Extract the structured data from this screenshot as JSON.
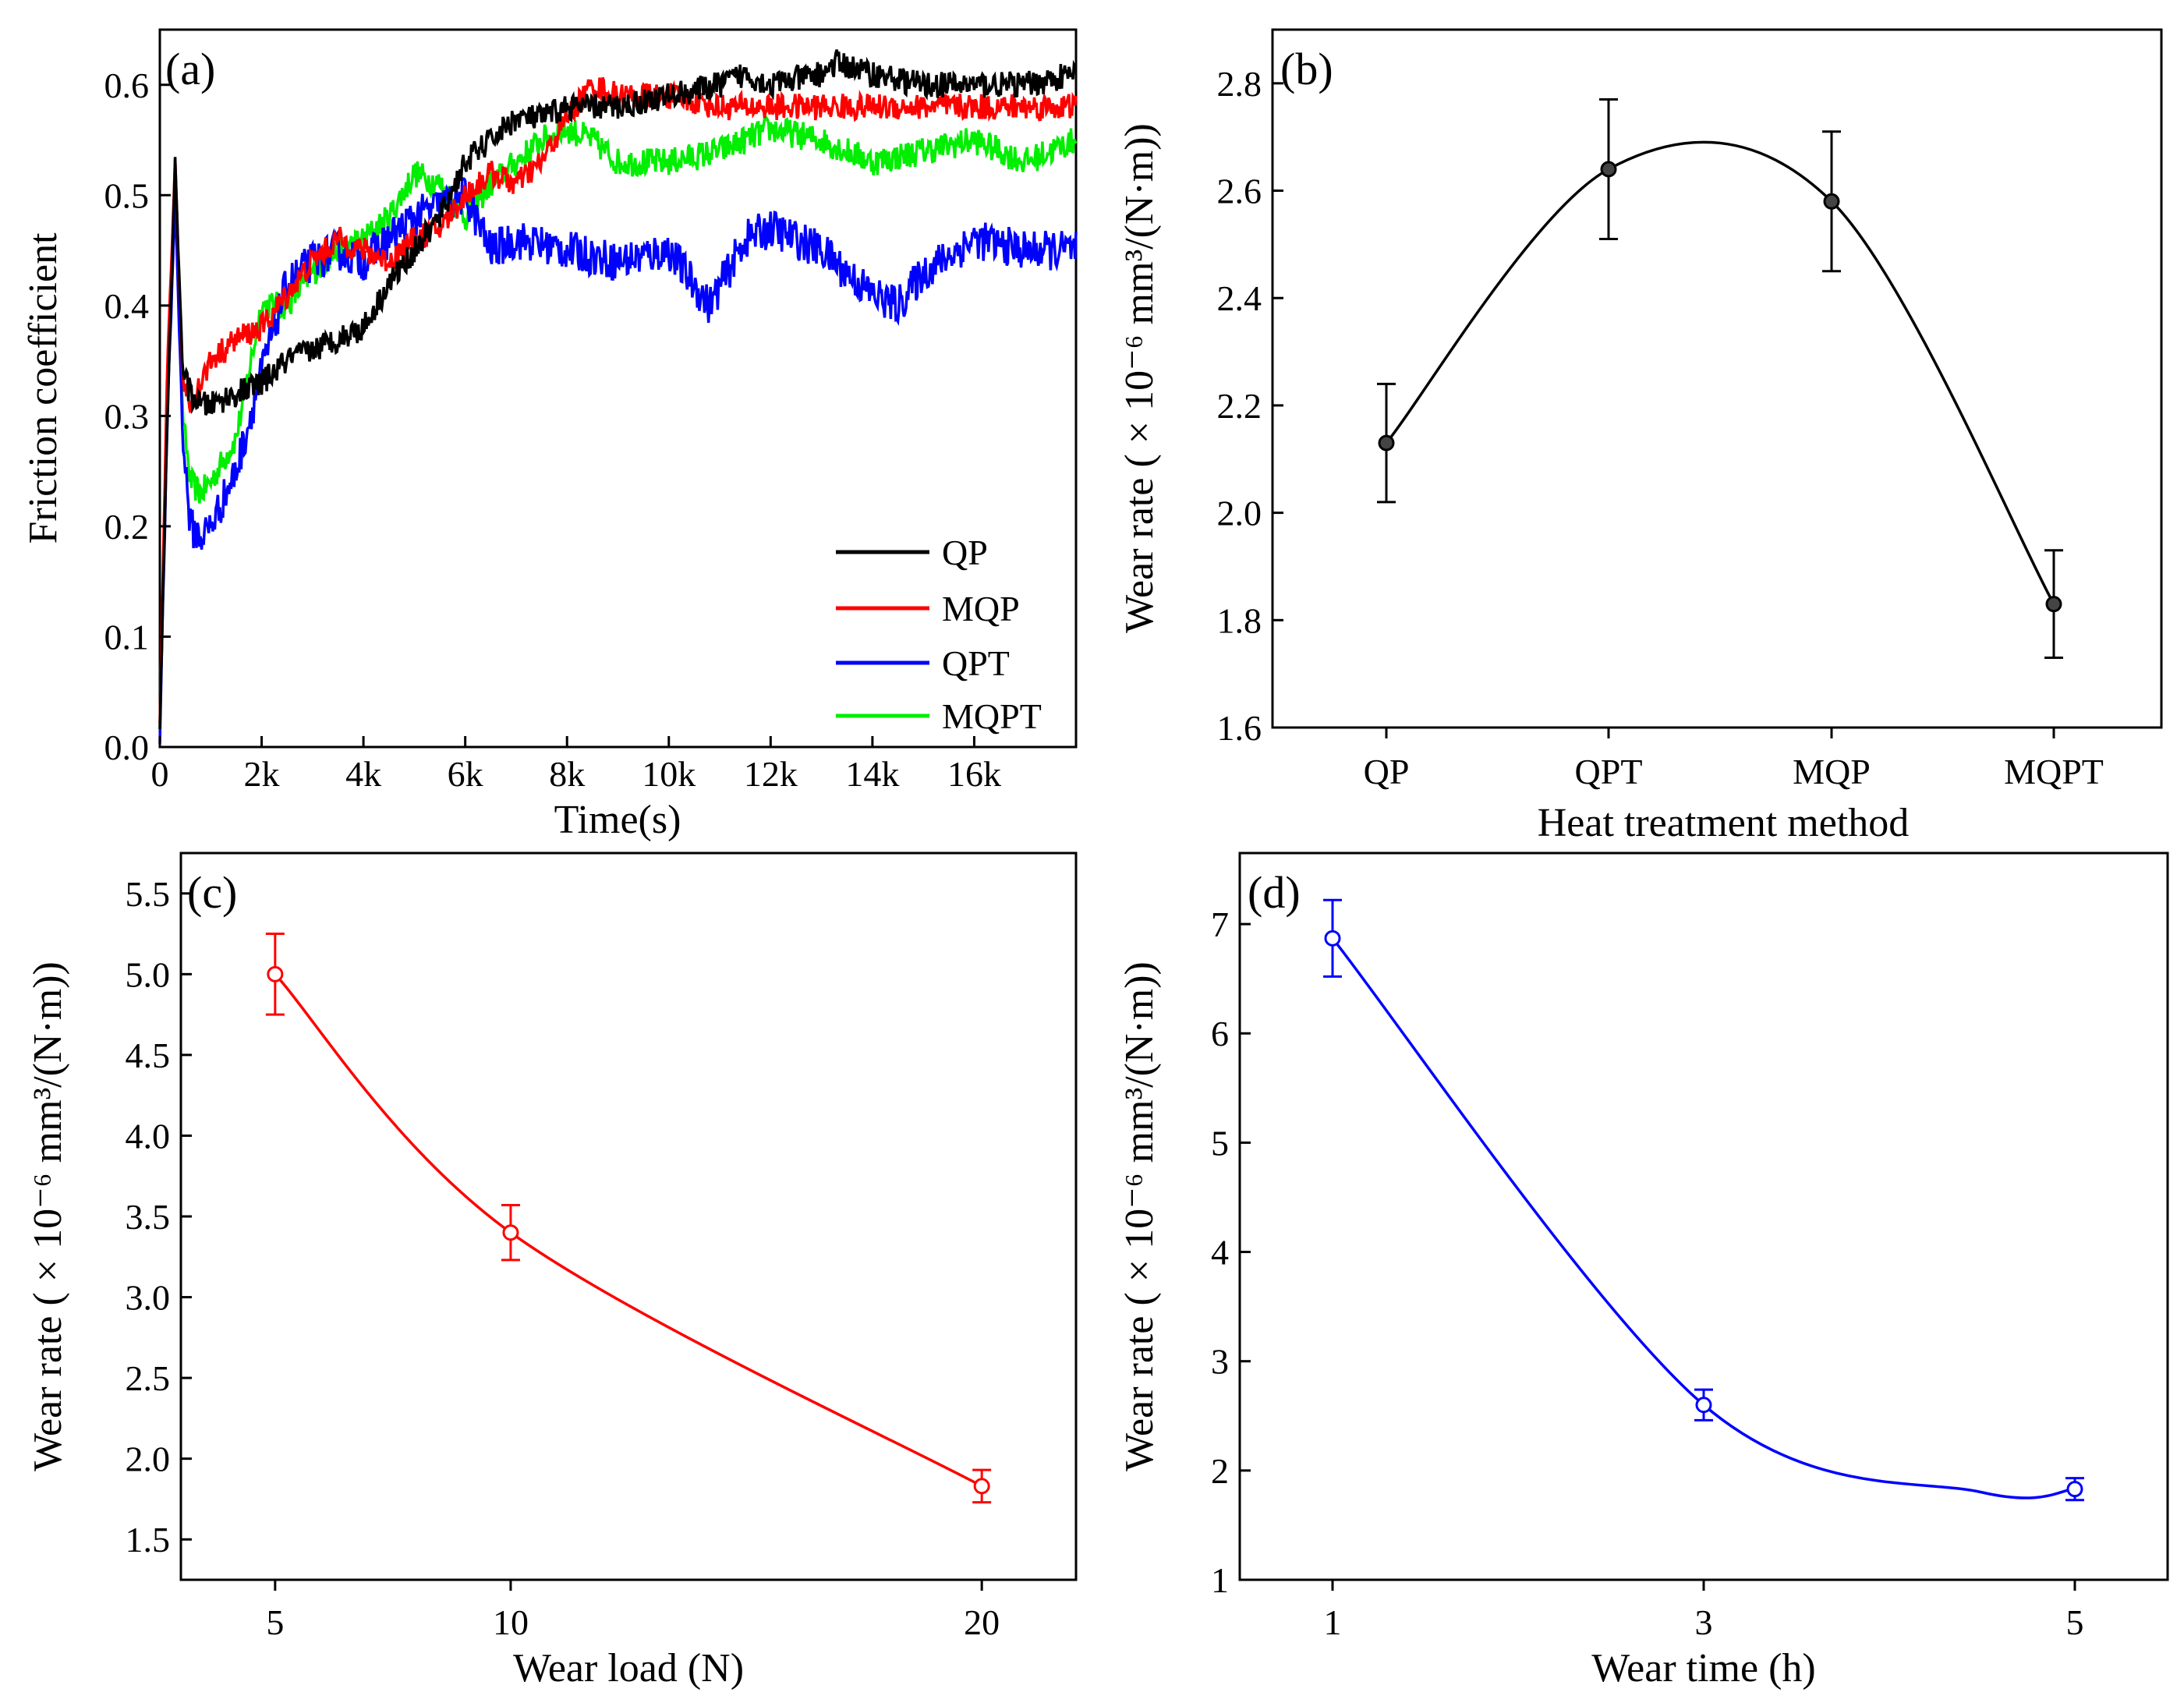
{
  "colors": {
    "QP": "#000000",
    "MQP": "#ff0000",
    "QPT": "#0000ff",
    "MQPT": "#00ee00"
  },
  "chart_data": [
    {
      "panel": "(a)",
      "type": "line",
      "xlabel": "Time(s)",
      "ylabel": "Friction coefficient",
      "xlim": [
        0,
        18000
      ],
      "ylim": [
        0,
        0.65
      ],
      "xticks": [
        0,
        2000,
        4000,
        6000,
        8000,
        10000,
        12000,
        14000,
        16000
      ],
      "xtick_labels": [
        "0",
        "2k",
        "4k",
        "6k",
        "8k",
        "10k",
        "12k",
        "14k",
        "16k"
      ],
      "yticks": [
        0.0,
        0.1,
        0.2,
        0.3,
        0.4,
        0.5,
        0.6
      ],
      "ytick_labels": [
        "0.0",
        "0.1",
        "0.2",
        "0.3",
        "0.4",
        "0.5",
        "0.6"
      ],
      "legend_position": "bottom-right",
      "series": [
        {
          "name": "QP",
          "color": "#000000",
          "noise": 0.012,
          "x": [
            0,
            150,
            300,
            450,
            600,
            800,
            1000,
            1500,
            2000,
            2500,
            3000,
            3500,
            4000,
            4500,
            5000,
            5500,
            6000,
            6500,
            7000,
            7500,
            8000,
            8500,
            9000,
            10000,
            11000,
            11500,
            12000,
            13000,
            13300,
            14000,
            15000,
            16000,
            17000,
            18000
          ],
          "y": [
            0.02,
            0.3,
            0.53,
            0.34,
            0.32,
            0.31,
            0.31,
            0.32,
            0.33,
            0.35,
            0.36,
            0.37,
            0.38,
            0.42,
            0.45,
            0.48,
            0.53,
            0.55,
            0.57,
            0.57,
            0.58,
            0.58,
            0.58,
            0.59,
            0.6,
            0.61,
            0.6,
            0.61,
            0.62,
            0.61,
            0.6,
            0.6,
            0.6,
            0.61
          ]
        },
        {
          "name": "MQP",
          "color": "#ff0000",
          "noise": 0.012,
          "x": [
            0,
            150,
            300,
            450,
            600,
            800,
            1000,
            1500,
            2000,
            2500,
            3000,
            3500,
            4000,
            4500,
            5000,
            5500,
            6000,
            6500,
            7000,
            7500,
            8000,
            8500,
            9000,
            10000,
            11000,
            12000,
            13000,
            14000,
            15000,
            16000,
            17000,
            18000
          ],
          "y": [
            0.02,
            0.35,
            0.53,
            0.33,
            0.31,
            0.33,
            0.35,
            0.37,
            0.38,
            0.41,
            0.44,
            0.46,
            0.45,
            0.44,
            0.46,
            0.47,
            0.5,
            0.52,
            0.51,
            0.53,
            0.57,
            0.6,
            0.59,
            0.59,
            0.58,
            0.58,
            0.58,
            0.58,
            0.58,
            0.58,
            0.58,
            0.58
          ]
        },
        {
          "name": "QPT",
          "color": "#0000ff",
          "noise": 0.018,
          "x": [
            0,
            150,
            300,
            450,
            600,
            800,
            1000,
            1500,
            2000,
            2500,
            3000,
            3500,
            4000,
            4500,
            5000,
            5500,
            6000,
            6500,
            7000,
            8000,
            9000,
            10000,
            10800,
            11500,
            12000,
            13000,
            14000,
            14500,
            15000,
            16000,
            17000,
            18000
          ],
          "y": [
            0.01,
            0.3,
            0.5,
            0.28,
            0.2,
            0.19,
            0.2,
            0.25,
            0.34,
            0.42,
            0.44,
            0.45,
            0.44,
            0.46,
            0.48,
            0.49,
            0.5,
            0.45,
            0.46,
            0.45,
            0.44,
            0.45,
            0.4,
            0.46,
            0.47,
            0.45,
            0.41,
            0.4,
            0.43,
            0.46,
            0.45,
            0.45
          ]
        },
        {
          "name": "MQPT",
          "color": "#00ee00",
          "noise": 0.013,
          "x": [
            0,
            150,
            300,
            450,
            600,
            800,
            1000,
            1500,
            2000,
            2500,
            3000,
            3500,
            4000,
            4500,
            5000,
            5500,
            6000,
            6500,
            7000,
            7500,
            8000,
            8500,
            9000,
            10000,
            11000,
            12000,
            13000,
            14000,
            15000,
            16000,
            17000,
            18000
          ],
          "y": [
            0.02,
            0.32,
            0.5,
            0.3,
            0.24,
            0.23,
            0.24,
            0.28,
            0.4,
            0.4,
            0.43,
            0.45,
            0.46,
            0.48,
            0.52,
            0.51,
            0.48,
            0.51,
            0.53,
            0.55,
            0.56,
            0.55,
            0.53,
            0.53,
            0.54,
            0.56,
            0.55,
            0.53,
            0.54,
            0.55,
            0.53,
            0.55
          ]
        }
      ]
    },
    {
      "panel": "(b)",
      "type": "line",
      "xlabel": "Heat treatment method",
      "ylabel": "Wear rate ( × 10⁻⁶ mm³/(N·m))",
      "categories": [
        "QP",
        "QPT",
        "MQP",
        "MQPT"
      ],
      "values": [
        2.13,
        2.64,
        2.58,
        1.83
      ],
      "errors": [
        0.11,
        0.13,
        0.13,
        0.1
      ],
      "ylim": [
        1.6,
        2.9
      ],
      "yticks": [
        1.6,
        1.8,
        2.0,
        2.2,
        2.4,
        2.6,
        2.8
      ],
      "ytick_labels": [
        "1.6",
        "1.8",
        "2.0",
        "2.2",
        "2.4",
        "2.6",
        "2.8"
      ],
      "color": "#000000"
    },
    {
      "panel": "(c)",
      "type": "line",
      "xlabel": "Wear load (N)",
      "ylabel": "Wear rate ( × 10⁻⁶ mm³/(N·m))",
      "x": [
        5,
        10,
        20
      ],
      "values": [
        5.0,
        3.4,
        1.83
      ],
      "errors": [
        0.25,
        0.17,
        0.1
      ],
      "xlim": [
        3,
        22
      ],
      "xticks": [
        5,
        10,
        20
      ],
      "xtick_labels": [
        "5",
        "10",
        "20"
      ],
      "ylim": [
        1.25,
        5.75
      ],
      "yticks": [
        1.5,
        2.0,
        2.5,
        3.0,
        3.5,
        4.0,
        4.5,
        5.0,
        5.5
      ],
      "ytick_labels": [
        "1.5",
        "2.0",
        "2.5",
        "3.0",
        "3.5",
        "4.0",
        "4.5",
        "5.0",
        "5.5"
      ],
      "color": "#ff0000"
    },
    {
      "panel": "(d)",
      "type": "line",
      "xlabel": "Wear time (h)",
      "ylabel": "Wear rate ( × 10⁻⁶ mm³/(N·m))",
      "x": [
        1,
        3,
        5
      ],
      "values": [
        6.87,
        2.6,
        1.83
      ],
      "errors": [
        0.35,
        0.14,
        0.1
      ],
      "xlim": [
        0.5,
        5.5
      ],
      "xticks": [
        1,
        3,
        5
      ],
      "xtick_labels": [
        "1",
        "3",
        "5"
      ],
      "ylim": [
        1,
        7.65
      ],
      "yticks": [
        1,
        2,
        3,
        4,
        5,
        6,
        7
      ],
      "ytick_labels": [
        "1",
        "2",
        "3",
        "4",
        "5",
        "6",
        "7"
      ],
      "color": "#0000ff"
    }
  ]
}
